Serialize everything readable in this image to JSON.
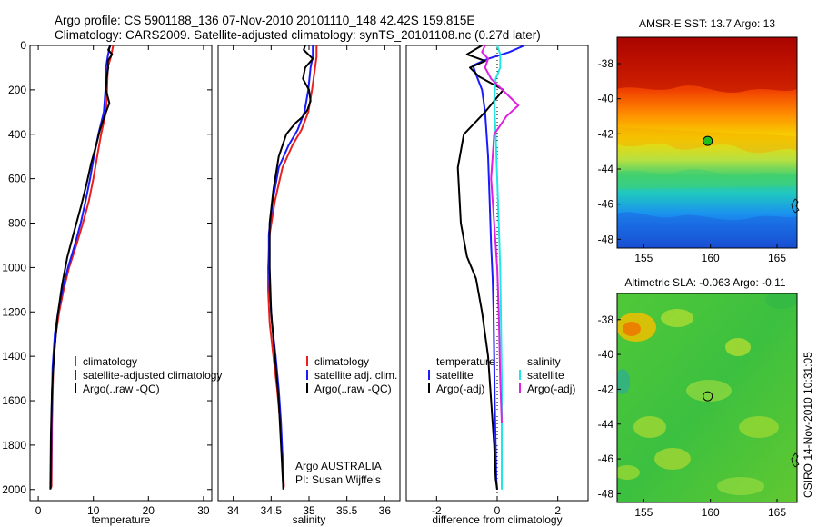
{
  "figure": {
    "title_line1": "Argo profile: CS 5901188_136 07-Nov-2010 20101110_148 42.42S 159.815E",
    "title_line2": "Climatology: CARS2009. Satellite-adjusted climatology: synTS_20101108.nc (0.27d later)",
    "stamp": "CSIRO 14-Nov-2010 10:31:05",
    "credit_line1": "Argo AUSTRALIA",
    "credit_line2": "PI: Susan Wijffels"
  },
  "colors": {
    "climatology": "#e8201e",
    "satellite": "#1a1aff",
    "argo": "#000000",
    "cyan": "#22e6e6",
    "magenta": "#e020e0"
  },
  "chart_data": [
    {
      "type": "line",
      "xlabel": "temperature",
      "ylabel": "",
      "xlim": [
        -1.5,
        31.5
      ],
      "ylim": [
        2050,
        0
      ],
      "xticks": [
        0,
        10,
        20,
        30
      ],
      "yticks": [
        0,
        200,
        400,
        600,
        800,
        1000,
        1200,
        1400,
        1600,
        1800,
        2000
      ],
      "legend_position": "lower-middle",
      "series": [
        {
          "name": "climatology",
          "color": "#e8201e",
          "x": [
            13.6,
            13.2,
            12.6,
            12.5,
            12.3,
            11.4,
            10.7,
            10.0,
            9.2,
            8.1,
            6.9,
            5.6,
            4.6,
            3.8,
            3.2,
            2.7,
            2.5,
            2.4
          ],
          "y": [
            0,
            50,
            100,
            200,
            300,
            400,
            500,
            600,
            700,
            800,
            900,
            1000,
            1100,
            1200,
            1300,
            1450,
            1700,
            1990
          ]
        },
        {
          "name": "satellite-adjusted climatology",
          "color": "#1a1aff",
          "x": [
            13.0,
            12.6,
            12.3,
            12.2,
            11.9,
            10.9,
            10.1,
            9.4,
            8.6,
            7.7,
            6.6,
            5.4,
            4.4,
            3.6,
            3.0,
            2.6,
            2.4,
            2.3
          ],
          "y": [
            0,
            50,
            100,
            200,
            300,
            400,
            500,
            600,
            700,
            800,
            900,
            1000,
            1100,
            1200,
            1300,
            1450,
            1700,
            1995
          ]
        },
        {
          "name": "Argo(..raw -QC)",
          "color": "#000000",
          "x": [
            13.1,
            12.7,
            13.4,
            12.6,
            12.7,
            12.4,
            12.3,
            12.9,
            12.0,
            11.2,
            10.5,
            9.6,
            8.8,
            7.8,
            6.6,
            5.3,
            4.3,
            3.5,
            2.9,
            2.5,
            2.3,
            2.2
          ],
          "y": [
            0,
            20,
            40,
            70,
            100,
            150,
            200,
            260,
            320,
            380,
            450,
            530,
            620,
            720,
            830,
            950,
            1080,
            1220,
            1380,
            1550,
            1750,
            2000
          ]
        }
      ]
    },
    {
      "type": "line",
      "xlabel": "salinity",
      "ylabel": "",
      "xlim": [
        33.8,
        36.2
      ],
      "ylim": [
        2050,
        0
      ],
      "xticks": [
        34,
        34.5,
        35,
        35.5,
        36
      ],
      "xtick_labels": [
        "34",
        "34.5",
        "35",
        "35.5",
        "36"
      ],
      "legend_position": "lower-middle",
      "series": [
        {
          "name": "climatology",
          "color": "#e8201e",
          "x": [
            35.1,
            35.1,
            35.08,
            35.04,
            34.99,
            34.9,
            34.78,
            34.65,
            34.55,
            34.48,
            34.46,
            34.46,
            34.48,
            34.53,
            34.58,
            34.62,
            34.65,
            34.67
          ],
          "y": [
            0,
            50,
            100,
            200,
            300,
            380,
            450,
            550,
            700,
            850,
            1000,
            1100,
            1250,
            1400,
            1550,
            1700,
            1850,
            1990
          ]
        },
        {
          "name": "satellite adj. clim.",
          "color": "#1a1aff",
          "x": [
            35.05,
            35.05,
            35.02,
            34.99,
            34.94,
            34.85,
            34.73,
            34.6,
            34.52,
            34.47,
            34.47,
            34.48,
            34.51,
            34.56,
            34.6,
            34.63,
            34.65,
            34.66
          ],
          "y": [
            0,
            50,
            100,
            200,
            300,
            380,
            450,
            550,
            700,
            850,
            1000,
            1100,
            1250,
            1400,
            1550,
            1700,
            1850,
            1995
          ]
        },
        {
          "name": "Argo(..raw -QC)",
          "color": "#000000",
          "x": [
            34.95,
            34.93,
            35.05,
            34.95,
            34.92,
            35.0,
            35.02,
            34.98,
            34.92,
            34.82,
            34.7,
            34.6,
            34.53,
            34.48,
            34.48,
            34.5,
            34.55,
            34.6,
            34.63,
            34.66
          ],
          "y": [
            0,
            20,
            60,
            100,
            150,
            200,
            250,
            290,
            320,
            350,
            400,
            500,
            650,
            800,
            1000,
            1200,
            1400,
            1600,
            1800,
            2000
          ]
        }
      ]
    },
    {
      "type": "line",
      "xlabel": "difference from climatology",
      "ylabel": "",
      "xlim": [
        -3,
        3
      ],
      "ylim": [
        2050,
        0
      ],
      "xticks": [
        -2,
        0,
        2
      ],
      "legend_position": "lower-middle",
      "legend_groups": [
        {
          "title": "temperature",
          "entries": [
            {
              "name": "satellite",
              "color": "#1a1aff"
            },
            {
              "name": "Argo(-adj)",
              "color": "#000000"
            }
          ]
        },
        {
          "title": "salinity",
          "entries": [
            {
              "name": "satellite",
              "color": "#22e6e6"
            },
            {
              "name": "Argo(-adj)",
              "color": "#e020e0"
            }
          ]
        }
      ],
      "series": [
        {
          "name": "temperature satellite",
          "color": "#1a1aff",
          "x": [
            0.9,
            0.4,
            -0.3,
            -0.8,
            -0.7,
            -0.5,
            -0.4,
            -0.3,
            -0.25,
            -0.2,
            -0.15,
            -0.12,
            -0.1,
            -0.08,
            -0.05,
            -0.03,
            0
          ],
          "y": [
            0,
            30,
            60,
            90,
            130,
            200,
            300,
            500,
            700,
            900,
            1050,
            1200,
            1400,
            1600,
            1800,
            1950,
            2000
          ]
        },
        {
          "name": "temperature Argo(-adj)",
          "color": "#000000",
          "x": [
            -0.5,
            -1.0,
            -0.4,
            -0.9,
            -0.6,
            0.2,
            -0.4,
            -1.1,
            -1.3,
            -1.2,
            -1.0,
            -0.7,
            -0.5,
            -0.3,
            -0.2,
            -0.1,
            -0.05,
            0
          ],
          "y": [
            0,
            40,
            70,
            100,
            140,
            200,
            300,
            400,
            550,
            800,
            950,
            1050,
            1200,
            1400,
            1600,
            1800,
            1950,
            2000
          ]
        },
        {
          "name": "salinity satellite",
          "color": "#22e6e6",
          "x": [
            0,
            0.1,
            0.1,
            -0.05,
            -0.1,
            -0.05,
            0,
            0.05,
            0.1,
            0.12,
            0.15,
            0.15,
            0.15
          ],
          "y": [
            0,
            40,
            100,
            150,
            250,
            400,
            600,
            800,
            1000,
            1200,
            1500,
            1800,
            2000
          ]
        },
        {
          "name": "salinity Argo(-adj)",
          "color": "#e020e0",
          "x": [
            -0.4,
            -0.5,
            -0.3,
            -0.4,
            -0.2,
            0.7,
            0.3,
            -0.1,
            -0.2,
            -0.1,
            0,
            0.05,
            0.1,
            0.15
          ],
          "y": [
            0,
            30,
            60,
            100,
            150,
            270,
            320,
            400,
            600,
            800,
            1000,
            1200,
            1500,
            1700
          ]
        }
      ]
    },
    {
      "type": "heatmap",
      "title": "AMSR-E SST: 13.7 Argo: 13",
      "xlim": [
        153,
        166.5
      ],
      "ylim": [
        -48.5,
        -36.5
      ],
      "xticks": [
        155,
        160,
        165
      ],
      "yticks": [
        -38,
        -40,
        -42,
        -44,
        -46,
        -48
      ],
      "profile_marker": {
        "lon": 159.8,
        "lat": -42.4
      }
    },
    {
      "type": "heatmap",
      "title": "Altimetric SLA: -0.063 Argo: -0.11",
      "xlim": [
        153,
        166.5
      ],
      "ylim": [
        -48.5,
        -36.5
      ],
      "xticks": [
        155,
        160,
        165
      ],
      "yticks": [
        -38,
        -40,
        -42,
        -44,
        -46,
        -48
      ],
      "profile_marker": {
        "lon": 159.8,
        "lat": -42.4
      }
    }
  ]
}
